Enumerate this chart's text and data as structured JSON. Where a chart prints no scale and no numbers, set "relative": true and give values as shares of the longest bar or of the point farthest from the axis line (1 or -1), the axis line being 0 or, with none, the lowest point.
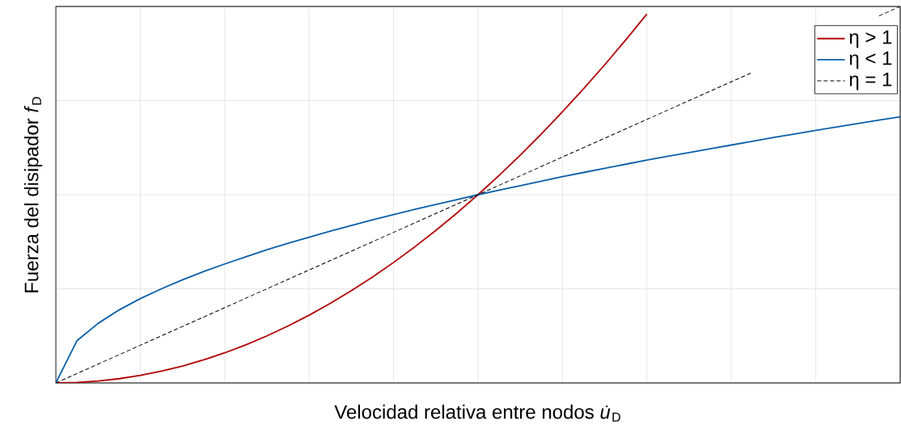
{
  "chart_data": {
    "type": "line",
    "relative": true,
    "grid": true,
    "legend": "top right",
    "xlabel": "Velocidad relativa entre nodos *u̇*$_{D}$",
    "ylabel": "Fuerza del disipador *f*$_{D}$",
    "categories": [
      null,
      null,
      null,
      null,
      null,
      null,
      null,
      null,
      null,
      null,
      null,
      null,
      null,
      null,
      null,
      null,
      null,
      null,
      null,
      null,
      null,
      null,
      null,
      null,
      null,
      null,
      null,
      null,
      null,
      null,
      null,
      null,
      null,
      null,
      null,
      null,
      null,
      null,
      null,
      null,
      null
    ],
    "series": [
      {
        "name": "η > 1",
        "color": "#b00000",
        "line_style": "solid",
        "values": [
          0,
          0.00125,
          0.005,
          0.01125,
          0.02,
          0.03125,
          0.045,
          0.06125,
          0.08,
          0.10125,
          0.125,
          0.15125,
          0.18,
          0.21125,
          0.245,
          0.28125,
          0.32,
          0.36125,
          0.405,
          0.45125,
          0.5,
          0.55125,
          0.605,
          0.66125,
          0.72,
          0.78125,
          0.845,
          0.91125,
          0.98,
          null,
          null,
          null,
          null,
          null,
          null,
          null,
          null,
          null,
          null,
          null,
          null
        ]
      },
      {
        "name": "η < 1",
        "color": "#0a5fa8",
        "line_style": "solid",
        "values": [
          0,
          0.112,
          0.158,
          0.194,
          0.224,
          0.25,
          0.274,
          0.296,
          0.316,
          0.335,
          0.354,
          0.371,
          0.387,
          0.403,
          0.418,
          0.433,
          0.447,
          0.461,
          0.474,
          0.487,
          0.5,
          0.512,
          0.524,
          0.536,
          0.548,
          0.559,
          0.57,
          0.581,
          0.592,
          0.602,
          0.612,
          0.622,
          0.632,
          0.642,
          0.652,
          0.661,
          0.671,
          0.68,
          0.689,
          0.698,
          0.707
        ]
      },
      {
        "name": "η = 1",
        "color": "#000000",
        "line_style": "dashed",
        "values": [
          0,
          0.025,
          0.05,
          0.075,
          0.1,
          0.125,
          0.15,
          0.175,
          0.2,
          0.225,
          0.25,
          0.275,
          0.3,
          0.325,
          0.35,
          0.375,
          0.4,
          0.425,
          0.45,
          0.475,
          0.5,
          0.525,
          0.55,
          0.575,
          0.6,
          0.625,
          0.65,
          0.675,
          0.7,
          0.725,
          0.75,
          0.775,
          0.8,
          0.825,
          null,
          null,
          null,
          null,
          null,
          0.975,
          1
        ]
      }
    ]
  }
}
